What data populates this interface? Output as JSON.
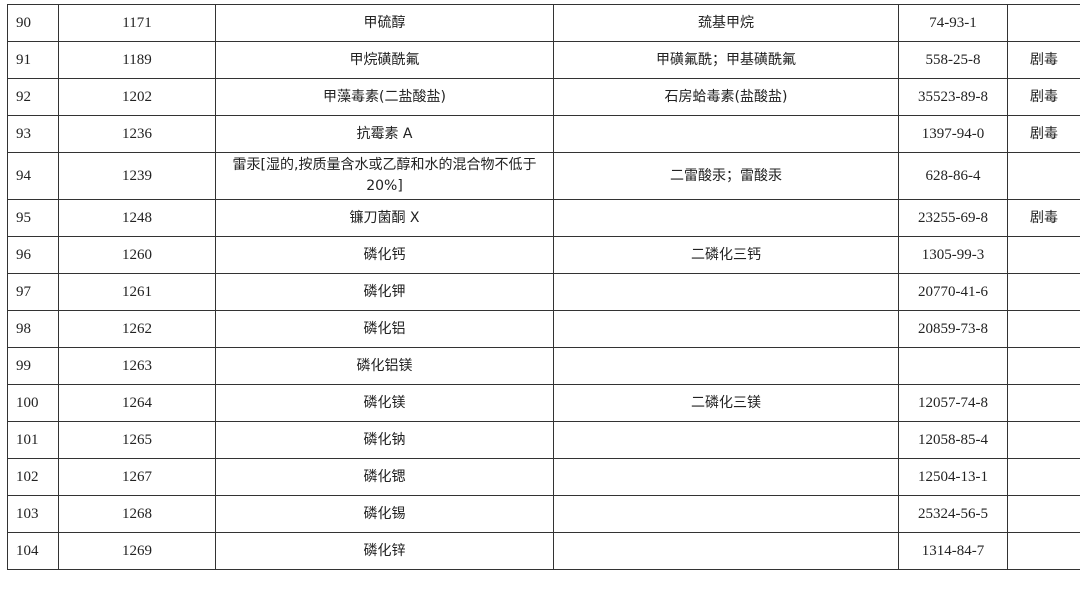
{
  "rows": [
    {
      "seq": "90",
      "no": "1171",
      "name": "甲硫醇",
      "alias": "巯基甲烷",
      "cas": "74-93-1",
      "note": ""
    },
    {
      "seq": "91",
      "no": "1189",
      "name": "甲烷磺酰氟",
      "alias": "甲磺氟酰；甲基磺酰氟",
      "cas": "558-25-8",
      "note": "剧毒"
    },
    {
      "seq": "92",
      "no": "1202",
      "name": "甲藻毒素(二盐酸盐)",
      "alias": "石房蛤毒素(盐酸盐)",
      "cas": "35523-89-8",
      "note": "剧毒"
    },
    {
      "seq": "93",
      "no": "1236",
      "name": "抗霉素 A",
      "alias": "",
      "cas": "1397-94-0",
      "note": "剧毒"
    },
    {
      "seq": "94",
      "no": "1239",
      "name": "雷汞[湿的,按质量含水或乙醇和水的混合物不低于 20%]",
      "alias": "二雷酸汞；雷酸汞",
      "cas": "628-86-4",
      "note": ""
    },
    {
      "seq": "95",
      "no": "1248",
      "name": "镰刀菌酮 X",
      "alias": "",
      "cas": "23255-69-8",
      "note": "剧毒"
    },
    {
      "seq": "96",
      "no": "1260",
      "name": "磷化钙",
      "alias": "二磷化三钙",
      "cas": "1305-99-3",
      "note": ""
    },
    {
      "seq": "97",
      "no": "1261",
      "name": "磷化钾",
      "alias": "",
      "cas": "20770-41-6",
      "note": ""
    },
    {
      "seq": "98",
      "no": "1262",
      "name": "磷化铝",
      "alias": "",
      "cas": "20859-73-8",
      "note": ""
    },
    {
      "seq": "99",
      "no": "1263",
      "name": "磷化铝镁",
      "alias": "",
      "cas": "",
      "note": ""
    },
    {
      "seq": "100",
      "no": "1264",
      "name": "磷化镁",
      "alias": "二磷化三镁",
      "cas": "12057-74-8",
      "note": ""
    },
    {
      "seq": "101",
      "no": "1265",
      "name": "磷化钠",
      "alias": "",
      "cas": "12058-85-4",
      "note": ""
    },
    {
      "seq": "102",
      "no": "1267",
      "name": "磷化锶",
      "alias": "",
      "cas": "12504-13-1",
      "note": ""
    },
    {
      "seq": "103",
      "no": "1268",
      "name": "磷化锡",
      "alias": "",
      "cas": "25324-56-5",
      "note": ""
    },
    {
      "seq": "104",
      "no": "1269",
      "name": "磷化锌",
      "alias": "",
      "cas": "1314-84-7",
      "note": ""
    }
  ]
}
